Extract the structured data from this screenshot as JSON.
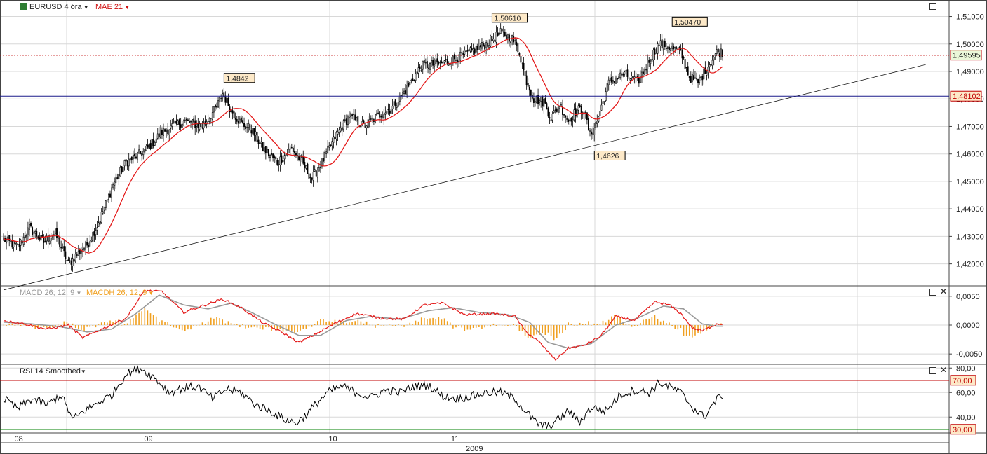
{
  "header": {
    "symbol": "EURUSD 4 óra",
    "indicator": "MAE 21",
    "macd_label": "MACD 26; 12; 9",
    "macdh_label": "MACDH 26; 12; 9",
    "rsi_label": "RSI 14 Smoothed"
  },
  "colors": {
    "candle": "#000000",
    "ma": "#e41a1a",
    "trendline": "#000000",
    "hline_blue": "#1a1a8a",
    "hline_red_dotted": "#c00000",
    "macd": "#e41a1a",
    "signal": "#999999",
    "histogram": "#f0a020",
    "rsi": "#000000",
    "rsi_upper": "#c00000",
    "rsi_lower": "#008000",
    "grid": "#d8d8d8",
    "label_bg": "#fde9c8"
  },
  "chart_data": [
    {
      "type": "candlestick",
      "symbol": "EURUSD",
      "timeframe": "4 óra",
      "overlay": "MAE 21",
      "ylim": [
        1.412,
        1.516
      ],
      "y_ticks": [
        "1,42000",
        "1,43000",
        "1,44000",
        "1,45000",
        "1,46000",
        "1,47000",
        "1,48000",
        "1,49000",
        "1,50000",
        "1,51000"
      ],
      "y_tick_values": [
        1.42,
        1.43,
        1.44,
        1.45,
        1.46,
        1.47,
        1.48,
        1.49,
        1.5,
        1.51
      ],
      "x_ticks": [
        "08",
        "09",
        "10",
        "11"
      ],
      "x_tick_index": [
        10,
        100,
        228,
        313
      ],
      "year_label": "2009",
      "bars": 500,
      "close_anchors": [
        [
          0,
          1.429
        ],
        [
          10,
          1.426
        ],
        [
          18,
          1.433
        ],
        [
          28,
          1.428
        ],
        [
          36,
          1.431
        ],
        [
          45,
          1.42
        ],
        [
          52,
          1.424
        ],
        [
          58,
          1.427
        ],
        [
          65,
          1.434
        ],
        [
          72,
          1.443
        ],
        [
          76,
          1.449
        ],
        [
          85,
          1.457
        ],
        [
          98,
          1.461
        ],
        [
          110,
          1.468
        ],
        [
          125,
          1.472
        ],
        [
          138,
          1.47
        ],
        [
          148,
          1.477
        ],
        [
          152,
          1.482
        ],
        [
          158,
          1.476
        ],
        [
          165,
          1.471
        ],
        [
          172,
          1.469
        ],
        [
          180,
          1.462
        ],
        [
          190,
          1.457
        ],
        [
          200,
          1.462
        ],
        [
          207,
          1.457
        ],
        [
          214,
          1.451
        ],
        [
          222,
          1.458
        ],
        [
          230,
          1.466
        ],
        [
          240,
          1.474
        ],
        [
          250,
          1.47
        ],
        [
          260,
          1.474
        ],
        [
          270,
          1.477
        ],
        [
          280,
          1.484
        ],
        [
          290,
          1.492
        ],
        [
          305,
          1.493
        ],
        [
          320,
          1.496
        ],
        [
          335,
          1.5
        ],
        [
          345,
          1.504
        ],
        [
          353,
          1.502
        ],
        [
          358,
          1.497
        ],
        [
          362,
          1.488
        ],
        [
          368,
          1.48
        ],
        [
          375,
          1.479
        ],
        [
          380,
          1.473
        ],
        [
          386,
          1.478
        ],
        [
          392,
          1.472
        ],
        [
          398,
          1.476
        ],
        [
          403,
          1.476
        ],
        [
          407,
          1.467
        ],
        [
          412,
          1.472
        ],
        [
          420,
          1.486
        ],
        [
          430,
          1.489
        ],
        [
          440,
          1.486
        ],
        [
          448,
          1.494
        ],
        [
          455,
          1.5
        ],
        [
          462,
          1.499
        ],
        [
          470,
          1.497
        ],
        [
          476,
          1.488
        ],
        [
          482,
          1.486
        ],
        [
          489,
          1.492
        ],
        [
          495,
          1.497
        ]
      ],
      "ma_period": 21,
      "labels": [
        {
          "text": "1,4842",
          "bar": 155,
          "value": 1.4842
        },
        {
          "text": "1,50610",
          "bar": 341,
          "value": 1.5061
        },
        {
          "text": "1,4626",
          "bar": 412,
          "value": 1.4626
        },
        {
          "text": "1,50470",
          "bar": 466,
          "value": 1.5047
        }
      ],
      "last_price": "1,49595",
      "last_price_value": 1.49595,
      "hline_price": "1,48102",
      "hline_price_value": 1.48102,
      "trendline": {
        "from": {
          "bar": 0,
          "value": 1.4105
        },
        "to": {
          "bar": 640,
          "value": 1.4925
        }
      }
    },
    {
      "type": "line",
      "name": "MACD 26; 12; 9",
      "ylim": [
        -0.0068,
        0.0068
      ],
      "y_ticks": [
        "0,0050",
        "0,0000",
        "-0,0050"
      ],
      "y_tick_values": [
        0.005,
        0.0,
        -0.005
      ],
      "series": [
        {
          "name": "MACD",
          "anchors": [
            [
              0,
              0.0008
            ],
            [
              15,
              0.0002
            ],
            [
              30,
              -0.0007
            ],
            [
              45,
              0.0
            ],
            [
              55,
              -0.0022
            ],
            [
              70,
              -0.0005
            ],
            [
              85,
              0.0012
            ],
            [
              98,
              0.006
            ],
            [
              110,
              0.0058
            ],
            [
              125,
              0.0022
            ],
            [
              140,
              0.0035
            ],
            [
              152,
              0.0045
            ],
            [
              165,
              0.003
            ],
            [
              180,
              0.0004
            ],
            [
              195,
              -0.0015
            ],
            [
              205,
              -0.003
            ],
            [
              215,
              -0.0018
            ],
            [
              230,
              0.0003
            ],
            [
              245,
              0.002
            ],
            [
              262,
              0.0012
            ],
            [
              278,
              0.001
            ],
            [
              292,
              0.0035
            ],
            [
              305,
              0.0038
            ],
            [
              320,
              0.0018
            ],
            [
              340,
              0.002
            ],
            [
              355,
              0.0015
            ],
            [
              362,
              -0.001
            ],
            [
              372,
              -0.003
            ],
            [
              383,
              -0.006
            ],
            [
              392,
              -0.004
            ],
            [
              403,
              -0.0035
            ],
            [
              414,
              -0.002
            ],
            [
              425,
              0.0015
            ],
            [
              438,
              0.0008
            ],
            [
              452,
              0.004
            ],
            [
              462,
              0.0035
            ],
            [
              470,
              0.002
            ],
            [
              478,
              -0.0005
            ],
            [
              485,
              -0.001
            ],
            [
              495,
              0.0002
            ]
          ]
        },
        {
          "name": "Signal",
          "anchors": [
            [
              0,
              0.0005
            ],
            [
              20,
              0.0002
            ],
            [
              40,
              -0.0003
            ],
            [
              58,
              -0.0012
            ],
            [
              75,
              -0.0007
            ],
            [
              92,
              0.002
            ],
            [
              108,
              0.0052
            ],
            [
              125,
              0.0035
            ],
            [
              142,
              0.0028
            ],
            [
              158,
              0.0038
            ],
            [
              172,
              0.0022
            ],
            [
              188,
              0.0002
            ],
            [
              205,
              -0.0018
            ],
            [
              220,
              -0.0018
            ],
            [
              238,
              0.0008
            ],
            [
              255,
              0.0015
            ],
            [
              275,
              0.001
            ],
            [
              295,
              0.0025
            ],
            [
              312,
              0.003
            ],
            [
              330,
              0.0022
            ],
            [
              350,
              0.0018
            ],
            [
              365,
              0.0005
            ],
            [
              378,
              -0.003
            ],
            [
              392,
              -0.004
            ],
            [
              408,
              -0.0032
            ],
            [
              425,
              0.0
            ],
            [
              440,
              0.0012
            ],
            [
              458,
              0.0033
            ],
            [
              472,
              0.0028
            ],
            [
              485,
              0.0002
            ],
            [
              495,
              -0.0002
            ]
          ]
        }
      ]
    },
    {
      "type": "line",
      "name": "RSI 14 Smoothed",
      "ylim": [
        27,
        83
      ],
      "y_ticks": [
        "80,00",
        "60,00",
        "40,00"
      ],
      "y_tick_values": [
        80,
        60,
        40
      ],
      "upper_level": "70,00",
      "upper_value": 70,
      "lower_level": "30,00",
      "lower_value": 30,
      "anchors": [
        [
          0,
          55
        ],
        [
          10,
          47
        ],
        [
          20,
          55
        ],
        [
          30,
          50
        ],
        [
          40,
          58
        ],
        [
          48,
          38
        ],
        [
          56,
          45
        ],
        [
          66,
          52
        ],
        [
          75,
          58
        ],
        [
          85,
          75
        ],
        [
          95,
          80
        ],
        [
          105,
          72
        ],
        [
          115,
          60
        ],
        [
          125,
          64
        ],
        [
          135,
          65
        ],
        [
          145,
          55
        ],
        [
          155,
          63
        ],
        [
          165,
          60
        ],
        [
          175,
          50
        ],
        [
          185,
          45
        ],
        [
          195,
          38
        ],
        [
          203,
          35
        ],
        [
          210,
          42
        ],
        [
          218,
          52
        ],
        [
          225,
          60
        ],
        [
          235,
          65
        ],
        [
          245,
          60
        ],
        [
          255,
          56
        ],
        [
          265,
          62
        ],
        [
          275,
          60
        ],
        [
          285,
          65
        ],
        [
          295,
          66
        ],
        [
          305,
          57
        ],
        [
          315,
          55
        ],
        [
          325,
          57
        ],
        [
          335,
          60
        ],
        [
          345,
          60
        ],
        [
          355,
          55
        ],
        [
          362,
          45
        ],
        [
          370,
          35
        ],
        [
          378,
          32
        ],
        [
          385,
          38
        ],
        [
          392,
          45
        ],
        [
          400,
          36
        ],
        [
          408,
          48
        ],
        [
          418,
          45
        ],
        [
          428,
          58
        ],
        [
          438,
          62
        ],
        [
          448,
          60
        ],
        [
          455,
          68
        ],
        [
          462,
          65
        ],
        [
          470,
          60
        ],
        [
          478,
          48
        ],
        [
          486,
          40
        ],
        [
          492,
          50
        ],
        [
          498,
          58
        ]
      ]
    }
  ]
}
